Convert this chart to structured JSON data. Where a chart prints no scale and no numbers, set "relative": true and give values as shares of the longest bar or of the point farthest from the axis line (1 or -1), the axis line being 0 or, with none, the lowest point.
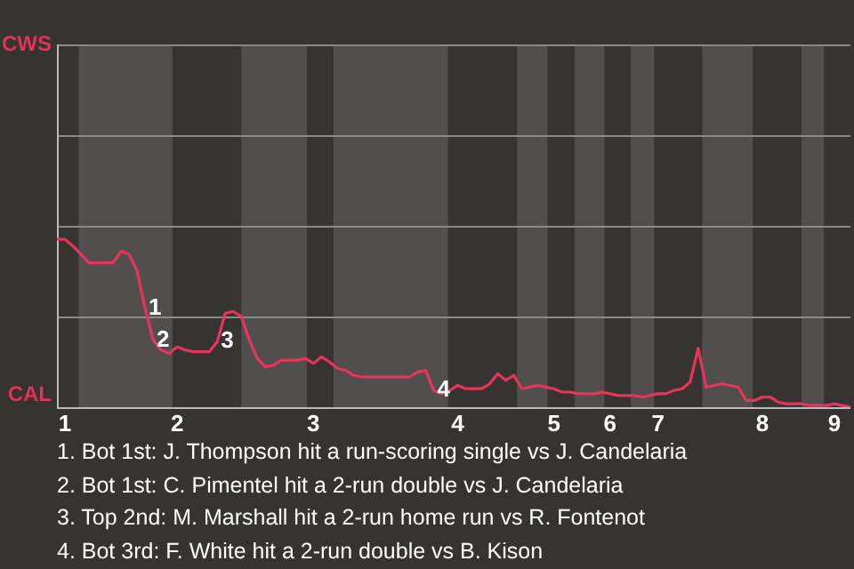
{
  "chart_data": {
    "type": "line",
    "relative": true,
    "categories": [
      null,
      "1",
      null,
      null,
      null,
      null,
      null,
      null,
      null,
      null,
      null,
      null,
      null,
      null,
      null,
      "2",
      null,
      null,
      null,
      null,
      null,
      null,
      null,
      null,
      null,
      null,
      null,
      null,
      null,
      null,
      null,
      null,
      "3",
      null,
      null,
      null,
      null,
      null,
      null,
      null,
      null,
      null,
      null,
      null,
      null,
      null,
      null,
      null,
      null,
      null,
      "4",
      null,
      null,
      null,
      null,
      null,
      null,
      null,
      null,
      null,
      null,
      null,
      "5",
      null,
      null,
      null,
      null,
      null,
      null,
      "6",
      null,
      null,
      null,
      null,
      null,
      "7",
      null,
      null,
      null,
      null,
      null,
      null,
      null,
      null,
      null,
      null,
      null,
      null,
      "8",
      null,
      null,
      null,
      null,
      null,
      null,
      null,
      null,
      "9",
      null,
      null
    ],
    "series": [
      {
        "color": "#e8345a",
        "values": [
          1.0,
          1.0,
          0.96,
          0.91,
          0.86,
          0.86,
          0.86,
          0.86,
          0.93,
          0.91,
          0.81,
          0.59,
          0.4,
          0.34,
          0.32,
          0.36,
          0.34,
          0.33,
          0.33,
          0.33,
          0.39,
          0.56,
          0.57,
          0.54,
          0.4,
          0.29,
          0.24,
          0.25,
          0.28,
          0.28,
          0.28,
          0.29,
          0.26,
          0.3,
          0.27,
          0.23,
          0.22,
          0.19,
          0.18,
          0.18,
          0.18,
          0.18,
          0.18,
          0.18,
          0.18,
          0.21,
          0.22,
          0.1,
          0.08,
          0.1,
          0.13,
          0.11,
          0.11,
          0.11,
          0.14,
          0.2,
          0.16,
          0.19,
          0.11,
          0.12,
          0.13,
          0.12,
          0.11,
          0.09,
          0.09,
          0.08,
          0.08,
          0.08,
          0.09,
          0.08,
          0.07,
          0.07,
          0.07,
          0.06,
          0.07,
          0.08,
          0.08,
          0.1,
          0.11,
          0.15,
          0.35,
          0.12,
          0.13,
          0.14,
          0.13,
          0.12,
          0.04,
          0.04,
          0.06,
          0.06,
          0.03,
          0.02,
          0.02,
          0.02,
          0.01,
          0.01,
          0.01,
          0.02,
          0.01,
          0
        ]
      }
    ],
    "ref_lines": [
      {
        "axis": "y",
        "value": 2.16,
        "color": "#8a8a88"
      },
      {
        "axis": "y",
        "value": 1.62,
        "color": "#8a8a88"
      },
      {
        "axis": "y",
        "value": 1.08,
        "color": "#8a8a88"
      },
      {
        "axis": "y",
        "value": 0.54,
        "color": "#8a8a88"
      }
    ],
    "legend": false,
    "marker": "none",
    "line_style": "solid",
    "annotations": [
      "CWS",
      "CAL",
      {
        "text": "1",
        "y": 0.59
      },
      {
        "text": "2",
        "y": 0.4
      },
      {
        "text": "3",
        "y": 0.39
      },
      {
        "text": "4",
        "y": 0.1
      },
      "1. Bot 1st: J. Thompson hit a run-scoring single vs J. Candelaria",
      "2. Bot 1st: C. Pimentel hit a 2-run double vs J. Candelaria",
      "3. Top 2nd: M. Marshall hit a 2-run home run vs R. Fontenot",
      "4. Bot 3rd: F. White hit a 2-run double vs B. Kison"
    ]
  }
}
